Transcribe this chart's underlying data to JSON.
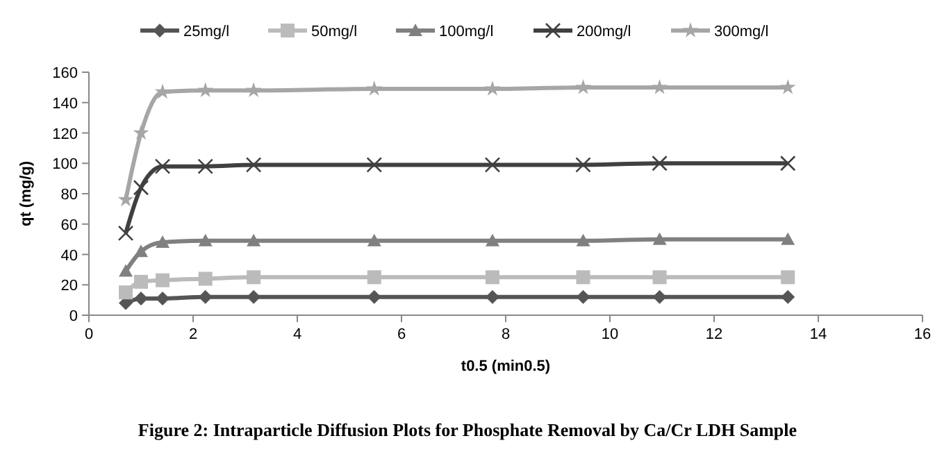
{
  "chart_data": {
    "type": "line",
    "title": "Figure 2: Intraparticle Diffusion Plots for Phosphate Removal by Ca/Cr LDH Sample",
    "xlabel": "t0.5 (min0.5)",
    "ylabel": "qt (mg/g)",
    "x": [
      0.707,
      1,
      1.414,
      2.236,
      3.162,
      5.477,
      7.746,
      9.487,
      10.954,
      13.416
    ],
    "series": [
      {
        "name": "25mg/l",
        "color": "#555555",
        "marker": "diamond",
        "values": [
          8,
          11,
          11,
          12,
          12,
          12,
          12,
          12,
          12,
          12
        ]
      },
      {
        "name": "50mg/l",
        "color": "#bbbbbb",
        "marker": "square",
        "values": [
          15,
          22,
          23,
          24,
          25,
          25,
          25,
          25,
          25,
          25
        ]
      },
      {
        "name": "100mg/l",
        "color": "#808080",
        "marker": "triangle",
        "values": [
          29,
          42,
          48,
          49,
          49,
          49,
          49,
          49,
          50,
          50
        ]
      },
      {
        "name": "200mg/l",
        "color": "#404040",
        "marker": "cross",
        "values": [
          54,
          84,
          98,
          98,
          99,
          99,
          99,
          99,
          100,
          100
        ]
      },
      {
        "name": "300mg/l",
        "color": "#a6a6a6",
        "marker": "star",
        "values": [
          76,
          120,
          147,
          148,
          148,
          149,
          149,
          150,
          150,
          150
        ]
      }
    ],
    "xlim": [
      0,
      16
    ],
    "xticks": [
      0,
      2,
      4,
      6,
      8,
      10,
      12,
      14,
      16
    ],
    "ylim": [
      0,
      160
    ],
    "yticks": [
      0,
      20,
      40,
      60,
      80,
      100,
      120,
      140,
      160
    ],
    "grid": false,
    "legend": "top",
    "line_style": "solid"
  }
}
